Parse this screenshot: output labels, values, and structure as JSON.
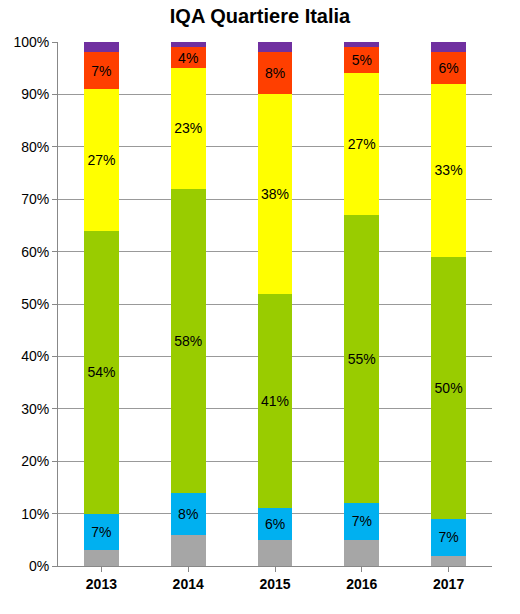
{
  "chart_data": {
    "type": "bar",
    "stacked": true,
    "title": "IQA Quartiere Italia",
    "categories": [
      "2013",
      "2014",
      "2015",
      "2016",
      "2017"
    ],
    "ylim": [
      0,
      100
    ],
    "yticks": [
      {
        "value": 0,
        "label": "0%"
      },
      {
        "value": 10,
        "label": "10%"
      },
      {
        "value": 20,
        "label": "20%"
      },
      {
        "value": 30,
        "label": "30%"
      },
      {
        "value": 40,
        "label": "40%"
      },
      {
        "value": 50,
        "label": "50%"
      },
      {
        "value": 60,
        "label": "60%"
      },
      {
        "value": 70,
        "label": "70%"
      },
      {
        "value": 80,
        "label": "80%"
      },
      {
        "value": 90,
        "label": "90%"
      },
      {
        "value": 100,
        "label": "100%"
      }
    ],
    "grid": true,
    "series": [
      {
        "color": "#a6a6a6",
        "values": [
          3,
          6,
          5,
          5,
          2
        ],
        "data_labels": false
      },
      {
        "color": "#00b0f0",
        "values": [
          7,
          8,
          6,
          7,
          7
        ],
        "data_labels": true,
        "value_labels": [
          "7%",
          "8%",
          "6%",
          "7%",
          "7%"
        ]
      },
      {
        "color": "#99cc00",
        "values": [
          54,
          58,
          41,
          55,
          50
        ],
        "data_labels": true,
        "value_labels": [
          "54%",
          "58%",
          "41%",
          "55%",
          "50%"
        ]
      },
      {
        "color": "#ffff00",
        "values": [
          27,
          23,
          38,
          27,
          33
        ],
        "data_labels": true,
        "value_labels": [
          "27%",
          "23%",
          "38%",
          "27%",
          "33%"
        ]
      },
      {
        "color": "#ff3f00",
        "values": [
          7,
          4,
          8,
          5,
          6
        ],
        "data_labels": true,
        "value_labels": [
          "7%",
          "4%",
          "8%",
          "5%",
          "6%"
        ]
      },
      {
        "color": "#7030a0",
        "values": [
          2,
          1,
          2,
          1,
          2
        ],
        "data_labels": false
      }
    ]
  }
}
